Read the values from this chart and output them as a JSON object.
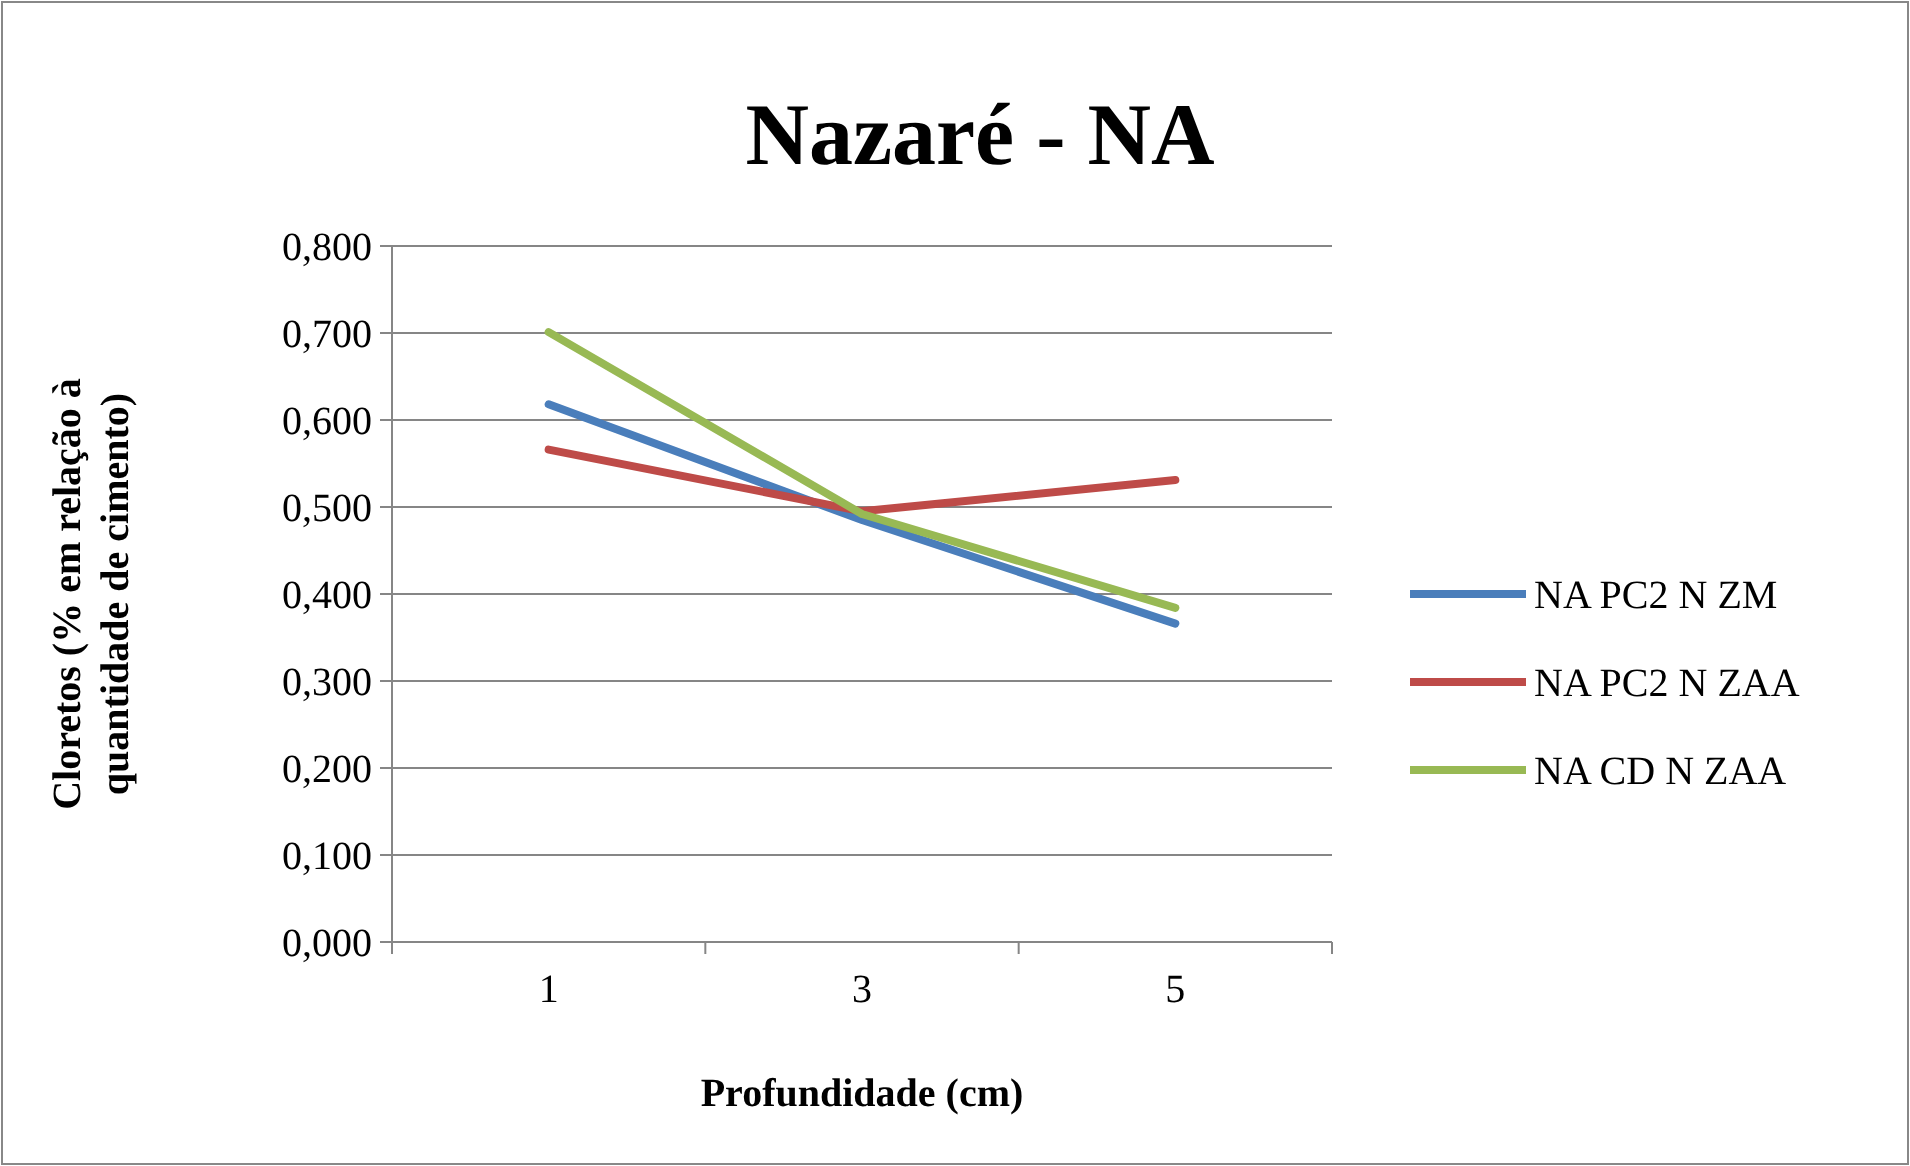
{
  "chart_data": {
    "type": "line",
    "title": "Nazaré - NA",
    "xlabel": "Profundidade (cm)",
    "ylabel": "Cloretos (% em relação à quantidade de cimento)",
    "categories": [
      "1",
      "3",
      "5"
    ],
    "series": [
      {
        "name": "NA PC2 N ZM",
        "color": "#4a7ebb",
        "values": [
          0.618,
          0.485,
          0.366
        ]
      },
      {
        "name": "NA PC2 N ZAA",
        "color": "#be4b48",
        "values": [
          0.566,
          0.495,
          0.531
        ]
      },
      {
        "name": "NA CD N ZAA",
        "color": "#98b954",
        "values": [
          0.701,
          0.492,
          0.384
        ]
      }
    ],
    "ylim": [
      0,
      0.8
    ],
    "yticks": [
      {
        "value": 0,
        "label": "0,000"
      },
      {
        "value": 0.1,
        "label": "0,100"
      },
      {
        "value": 0.2,
        "label": "0,200"
      },
      {
        "value": 0.3,
        "label": "0,300"
      },
      {
        "value": 0.4,
        "label": "0,400"
      },
      {
        "value": 0.5,
        "label": "0,500"
      },
      {
        "value": 0.6,
        "label": "0,600"
      },
      {
        "value": 0.7,
        "label": "0,700"
      },
      {
        "value": 0.8,
        "label": "0,800"
      }
    ],
    "grid": "y",
    "legend": "right",
    "marker": "none",
    "line_style": "solid"
  }
}
